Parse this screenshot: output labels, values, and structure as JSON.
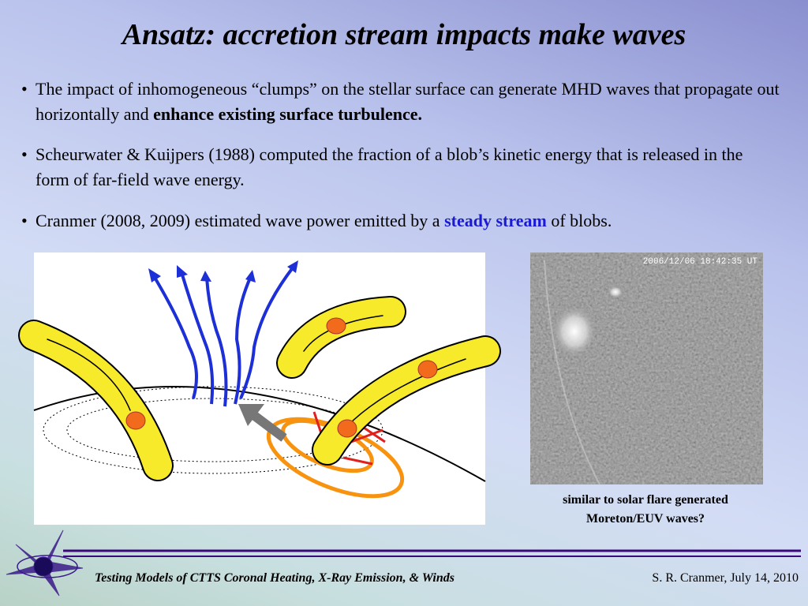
{
  "header": {
    "title": "Ansatz:  accretion stream impacts make waves"
  },
  "bullets": [
    {
      "text": "The impact of inhomogeneous “clumps” on the stellar surface can generate MHD waves that propagate out horizontally and",
      "bold": "enhance existing surface turbulence."
    },
    {
      "text": "Scheurwater & Kuijpers (1988) computed the fraction of a blob’s kinetic energy that is released in the form of far-field wave energy."
    },
    {
      "text": "Cranmer (2008, 2009) estimated wave power emitted by a",
      "highlight": "steady stream",
      "after": "of blobs."
    }
  ],
  "image": {
    "timestamp": "2006/12/06 18:42:35 UT",
    "caption": [
      "similar to solar flare generated",
      "Moreton/EUV waves?"
    ]
  },
  "footer": {
    "title": "Testing Models of CTTS Coronal Heating, X-Ray Emission, & Winds",
    "author": "S. R. Cranmer, July 14, 2010"
  }
}
